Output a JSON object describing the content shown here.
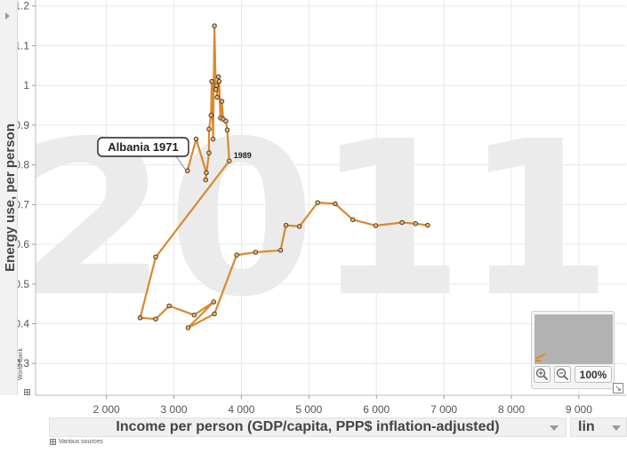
{
  "year_watermark": "2011",
  "y_axis_title": "Energy use, per person",
  "x_axis_selector": {
    "label": "Income per person (GDP/capita, PPP$ inflation-adjusted)"
  },
  "scale_selector": {
    "value": "lin"
  },
  "y_source_label": "World Bank",
  "x_source_label": "Various sources",
  "zoom": {
    "in_label": "+",
    "out_label": "−",
    "percent_label": "100%"
  },
  "colors": {
    "trail": "#d88a2e",
    "watermark": "#ebebeb",
    "grid": "#e8e8e8"
  },
  "chart_data": {
    "type": "line",
    "title": "",
    "xlabel": "Income per person (GDP/capita, PPP$ inflation-adjusted)",
    "ylabel": "Energy use, per person",
    "xscale": "lin",
    "xlim": [
      950,
      9700
    ],
    "ylim": [
      0.22,
      1.215
    ],
    "x_ticks": [
      2000,
      3000,
      4000,
      5000,
      6000,
      7000,
      8000,
      9000
    ],
    "x_tick_labels": [
      "2 000",
      "3 000",
      "4 000",
      "5 000",
      "6 000",
      "7 000",
      "8 000",
      "9 000"
    ],
    "y_ticks": [
      0.3,
      0.4,
      0.5,
      0.6,
      0.7,
      0.8,
      0.9,
      1.0,
      1.1,
      1.2
    ],
    "y_tick_labels": [
      "0.3",
      "0.4",
      "0.5",
      "0.6",
      "0.7",
      "0.8",
      "0.9",
      "1",
      "1.1",
      "1.2"
    ],
    "grid": true,
    "series": [
      {
        "name": "Albania",
        "points": [
          [
            3200,
            0.785
          ],
          [
            3330,
            0.865
          ],
          [
            3480,
            0.78
          ],
          [
            3470,
            0.762
          ],
          [
            3520,
            0.83
          ],
          [
            3520,
            0.89
          ],
          [
            3550,
            0.925
          ],
          [
            3560,
            1.01
          ],
          [
            3580,
            0.865
          ],
          [
            3600,
            1.15
          ],
          [
            3620,
            0.99
          ],
          [
            3630,
            1.0
          ],
          [
            3640,
            0.97
          ],
          [
            3660,
            1.022
          ],
          [
            3670,
            1.01
          ],
          [
            3690,
            0.918
          ],
          [
            3710,
            0.96
          ],
          [
            3730,
            0.915
          ],
          [
            3770,
            0.91
          ],
          [
            3790,
            0.888
          ],
          [
            3820,
            0.81
          ],
          [
            2730,
            0.568
          ],
          [
            2500,
            0.415
          ],
          [
            2730,
            0.412
          ],
          [
            2930,
            0.445
          ],
          [
            3300,
            0.422
          ],
          [
            3590,
            0.455
          ],
          [
            3210,
            0.39
          ],
          [
            3600,
            0.425
          ],
          [
            3930,
            0.573
          ],
          [
            4210,
            0.58
          ],
          [
            4580,
            0.585
          ],
          [
            4660,
            0.648
          ],
          [
            4860,
            0.645
          ],
          [
            5130,
            0.705
          ],
          [
            5390,
            0.702
          ],
          [
            5650,
            0.662
          ],
          [
            5990,
            0.647
          ],
          [
            6380,
            0.655
          ],
          [
            6580,
            0.652
          ],
          [
            6760,
            0.648
          ]
        ]
      }
    ],
    "annotations": [
      {
        "text": "Albania 1971",
        "x": 3200,
        "y": 0.785,
        "type": "start-tag"
      },
      {
        "text": "1989",
        "x": 3820,
        "y": 0.81,
        "type": "point-label"
      }
    ]
  }
}
